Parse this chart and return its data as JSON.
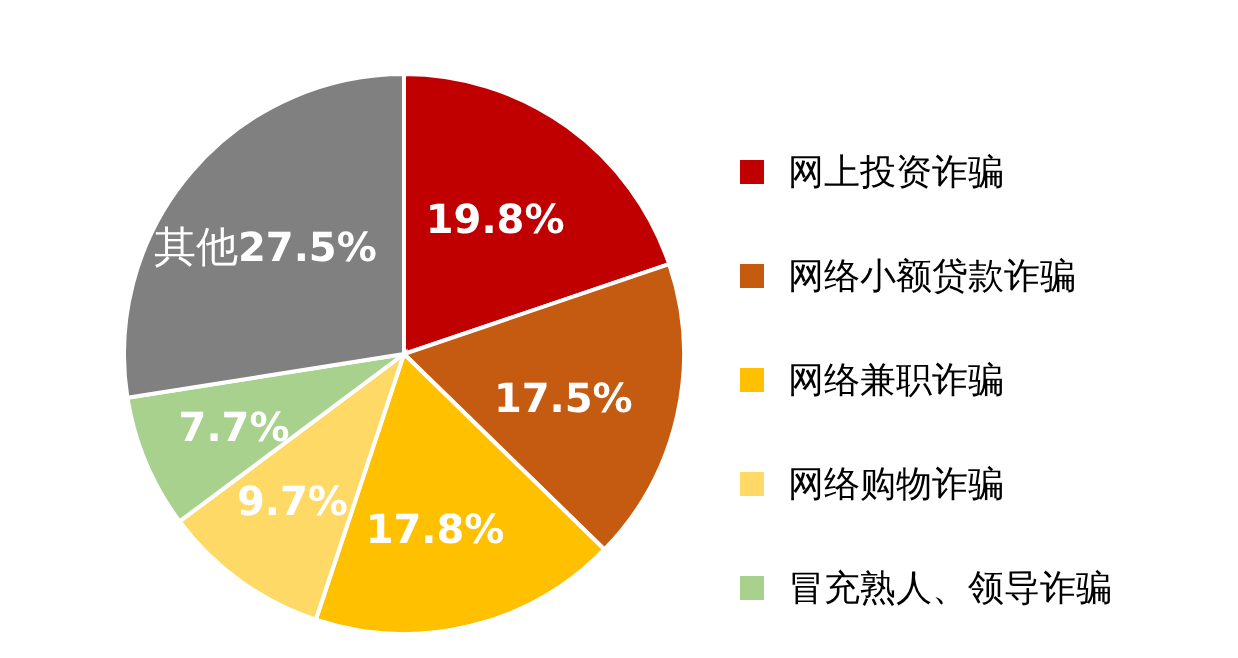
{
  "chart_data": {
    "type": "pie",
    "categories": [
      "网上投资诈骗",
      "网络小额贷款诈骗",
      "网络兼职诈骗",
      "网络购物诈骗",
      "冒充熟人、领导诈骗",
      "其他"
    ],
    "values": [
      19.8,
      17.5,
      17.8,
      9.7,
      7.7,
      27.5
    ],
    "colors": [
      "#c00000",
      "#c55a11",
      "#ffc000",
      "#ffd966",
      "#a9d18e",
      "#808080"
    ],
    "value_labels": [
      "19.8%",
      "17.5%",
      "17.8%",
      "9.7%",
      "7.7%",
      "27.5%"
    ],
    "legend": "right"
  }
}
